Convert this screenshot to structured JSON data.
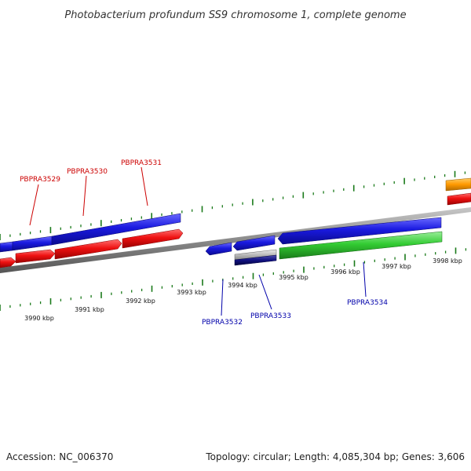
{
  "title": "Photobacterium profundum SS9 chromosome 1, complete genome",
  "footer": {
    "accession": "Accession: NC_006370",
    "stats": "Topology: circular; Length: 4,085,304 bp; Genes: 3,606"
  },
  "colors": {
    "tick": "#1a7a1a",
    "backbone": "#8a8a8a",
    "red_label": "#cc0000",
    "blue_label": "#0000aa",
    "gene_blue": "#1a1ae0",
    "gene_red": "#ee1111",
    "gene_green": "#33cc33",
    "gene_orange": "#ff9900",
    "gene_gray": "#bbbbbb",
    "gene_navy": "#101080"
  },
  "scale_ticks": [
    {
      "label": "3990 kbp"
    },
    {
      "label": "3991 kbp"
    },
    {
      "label": "3992 kbp"
    },
    {
      "label": "3993 kbp"
    },
    {
      "label": "3994 kbp"
    },
    {
      "label": "3995 kbp"
    },
    {
      "label": "3996 kbp"
    },
    {
      "label": "3997 kbp"
    },
    {
      "label": "3998 kbp"
    }
  ],
  "gene_labels": [
    {
      "text": "PBPRA3529",
      "color": "#cc0000"
    },
    {
      "text": "PBPRA3530",
      "color": "#cc0000"
    },
    {
      "text": "PBPRA3531",
      "color": "#cc0000"
    },
    {
      "text": "PBPRA3532",
      "color": "#0000aa"
    },
    {
      "text": "PBPRA3533",
      "color": "#0000aa"
    },
    {
      "text": "PBPRA3534",
      "color": "#0000aa"
    }
  ]
}
